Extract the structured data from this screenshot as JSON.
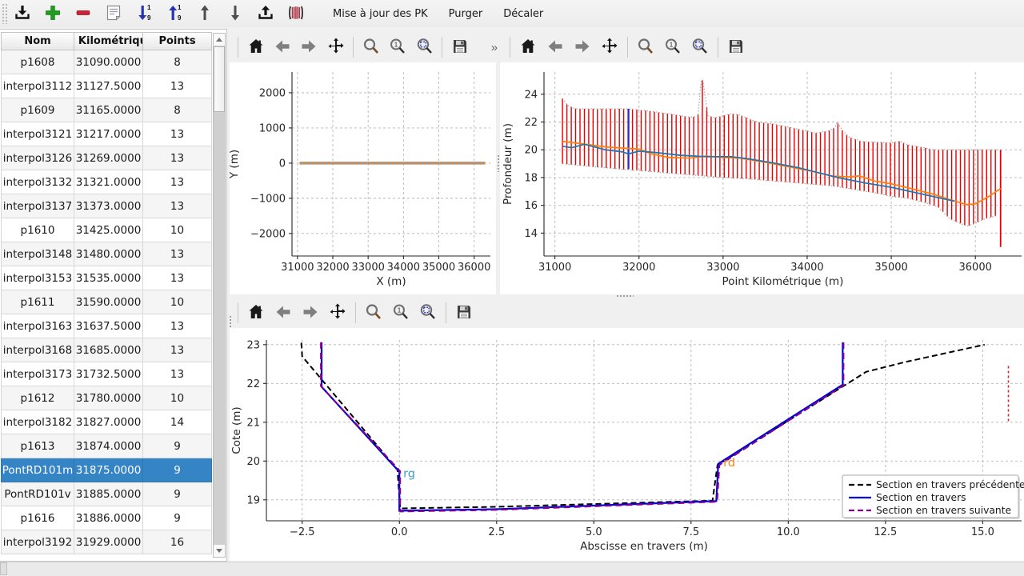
{
  "app_toolbar": {
    "icons": [
      {
        "name": "import-icon"
      },
      {
        "name": "add-icon"
      },
      {
        "name": "remove-icon"
      },
      {
        "name": "notes-icon"
      },
      {
        "name": "sort-descending-icon"
      },
      {
        "name": "sort-ascending-icon"
      },
      {
        "name": "move-up-icon"
      },
      {
        "name": "move-down-icon"
      },
      {
        "name": "export-icon"
      },
      {
        "name": "cross-sections-icon"
      }
    ],
    "text_buttons": [
      {
        "id": "maj-pk",
        "label": "Mise à jour des PK"
      },
      {
        "id": "purger",
        "label": "Purger"
      },
      {
        "id": "decaler",
        "label": "Décaler"
      }
    ]
  },
  "nav_toolbar": {
    "icons": [
      "home-icon",
      "back-icon",
      "forward-icon",
      "pan-icon",
      "zoom-icon",
      "zoom-one-icon",
      "zoom-fit-icon",
      "save-icon"
    ],
    "overflow_chevron": "»"
  },
  "table": {
    "columns": [
      "Nom",
      "t Kilométriqu",
      "Points"
    ],
    "selected_index": 17,
    "rows": [
      [
        "p1608",
        "31090.0000",
        "8"
      ],
      [
        "interpol3112",
        "31127.5000",
        "13"
      ],
      [
        "p1609",
        "31165.0000",
        "8"
      ],
      [
        "interpol3121",
        "31217.0000",
        "13"
      ],
      [
        "interpol3126",
        "31269.0000",
        "13"
      ],
      [
        "interpol3132",
        "31321.0000",
        "13"
      ],
      [
        "interpol3137",
        "31373.0000",
        "13"
      ],
      [
        "p1610",
        "31425.0000",
        "10"
      ],
      [
        "interpol3148",
        "31480.0000",
        "13"
      ],
      [
        "interpol3153",
        "31535.0000",
        "13"
      ],
      [
        "p1611",
        "31590.0000",
        "10"
      ],
      [
        "interpol3163",
        "31637.5000",
        "13"
      ],
      [
        "interpol3168",
        "31685.0000",
        "13"
      ],
      [
        "interpol3173",
        "31732.5000",
        "13"
      ],
      [
        "p1612",
        "31780.0000",
        "10"
      ],
      [
        "interpol3182",
        "31827.0000",
        "14"
      ],
      [
        "p1613",
        "31874.0000",
        "9"
      ],
      [
        "PontRD101m",
        "31875.0000",
        "9"
      ],
      [
        "PontRD101v",
        "31885.0000",
        "9"
      ],
      [
        "p1616",
        "31886.0000",
        "9"
      ],
      [
        "interpol3192",
        "31929.0000",
        "16"
      ]
    ]
  },
  "colors": {
    "selection": "#3584c6",
    "section_red": "#e60000",
    "orange": "#ff7f0e",
    "blue": "#1f77b4",
    "selected_section": "#2a2ad0",
    "current_blue": "#0000dd",
    "next_purple": "#8b008b",
    "grid": "#b5b5b5"
  },
  "chart_data": [
    {
      "id": "plan-view",
      "type": "line",
      "xlabel": "X (m)",
      "ylabel": "Y (m)",
      "xlim": [
        30845,
        36460
      ],
      "ylim": [
        -2640,
        2590
      ],
      "xticks": [
        {
          "v": 31000,
          "label": "31000"
        },
        {
          "v": 32000,
          "label": "32000"
        },
        {
          "v": 33000,
          "label": "33000"
        },
        {
          "v": 34000,
          "label": "34000"
        },
        {
          "v": 35000,
          "label": "35000"
        },
        {
          "v": 36000,
          "label": "36000"
        }
      ],
      "yticks": [
        {
          "v": -2000,
          "label": "−2000"
        },
        {
          "v": -1000,
          "label": "−1000"
        },
        {
          "v": 0,
          "label": "0"
        },
        {
          "v": 1000,
          "label": "1000"
        },
        {
          "v": 2000,
          "label": "2000"
        }
      ],
      "grid": true,
      "series": [
        {
          "name": "axe-gris",
          "color": "#9a9a9a",
          "width": 3.5,
          "dash": "",
          "points": [
            [
              31060,
              0
            ],
            [
              36310,
              0
            ]
          ]
        },
        {
          "name": "axe-orange",
          "color": "#ff7f0e",
          "width": 2,
          "dash": "2.5 2.5",
          "points": [
            [
              31060,
              0
            ],
            [
              36310,
              0
            ]
          ]
        }
      ]
    },
    {
      "id": "profil-long",
      "type": "line",
      "xlabel": "Point Kilométrique (m)",
      "ylabel": "Profondeur (m)",
      "xlim": [
        30870,
        36550
      ],
      "ylim": [
        12.35,
        25.6
      ],
      "xticks": [
        {
          "v": 31000,
          "label": "31000"
        },
        {
          "v": 32000,
          "label": "32000"
        },
        {
          "v": 33000,
          "label": "33000"
        },
        {
          "v": 34000,
          "label": "34000"
        },
        {
          "v": 35000,
          "label": "35000"
        },
        {
          "v": 36000,
          "label": "36000"
        }
      ],
      "yticks": [
        {
          "v": 14,
          "label": "14"
        },
        {
          "v": 16,
          "label": "16"
        },
        {
          "v": 18,
          "label": "18"
        },
        {
          "v": 20,
          "label": "20"
        },
        {
          "v": 22,
          "label": "22"
        },
        {
          "v": 24,
          "label": "24"
        }
      ],
      "grid": true,
      "envelope_top": [
        [
          31090,
          23.7
        ],
        [
          31150,
          23.2
        ],
        [
          31250,
          22.95
        ],
        [
          31450,
          22.95
        ],
        [
          31875,
          22.95
        ],
        [
          32100,
          22.8
        ],
        [
          32400,
          22.55
        ],
        [
          32600,
          22.35
        ],
        [
          32700,
          22.4
        ],
        [
          32740,
          25.0
        ],
        [
          32760,
          25.0
        ],
        [
          32820,
          22.45
        ],
        [
          32900,
          22.3
        ],
        [
          33100,
          22.6
        ],
        [
          33200,
          22.5
        ],
        [
          33400,
          22.0
        ],
        [
          33600,
          21.85
        ],
        [
          33800,
          21.6
        ],
        [
          34000,
          21.35
        ],
        [
          34100,
          21.2
        ],
        [
          34250,
          21.35
        ],
        [
          34330,
          21.6
        ],
        [
          34355,
          22.0
        ],
        [
          34420,
          21.4
        ],
        [
          34500,
          20.9
        ],
        [
          34650,
          20.6
        ],
        [
          34800,
          20.55
        ],
        [
          35000,
          20.5
        ],
        [
          35100,
          20.62
        ],
        [
          35200,
          20.35
        ],
        [
          35350,
          20.2
        ],
        [
          35500,
          20.0
        ],
        [
          36300,
          20.0
        ]
      ],
      "envelope_bottom": [
        [
          31090,
          19.0
        ],
        [
          31500,
          18.75
        ],
        [
          32000,
          18.5
        ],
        [
          32500,
          18.25
        ],
        [
          33000,
          18.0
        ],
        [
          33300,
          17.9
        ],
        [
          33700,
          17.7
        ],
        [
          34000,
          17.55
        ],
        [
          34300,
          17.4
        ],
        [
          34600,
          17.1
        ],
        [
          34800,
          16.9
        ],
        [
          35000,
          16.65
        ],
        [
          35200,
          16.5
        ],
        [
          35400,
          16.2
        ],
        [
          35550,
          15.9
        ],
        [
          35700,
          15.0
        ],
        [
          35900,
          14.5
        ],
        [
          36000,
          14.7
        ],
        [
          36100,
          15.0
        ],
        [
          36250,
          15.25
        ]
      ],
      "sections": {
        "start": 31090,
        "end": 36260,
        "step": 52
      },
      "last_section": {
        "x": 36300,
        "top": 20.0,
        "bottom": 13.0
      },
      "selected_section": {
        "x": 31875,
        "color": "#2a2ad0"
      },
      "series": [
        {
          "name": "fond-orange",
          "color": "#ff7f0e",
          "width": 1.8,
          "dash": "",
          "points": [
            [
              31090,
              20.6
            ],
            [
              31300,
              20.45
            ],
            [
              31600,
              20.2
            ],
            [
              31875,
              20.1
            ],
            [
              32000,
              20.05
            ],
            [
              32150,
              19.7
            ],
            [
              32350,
              19.45
            ],
            [
              32600,
              19.4
            ],
            [
              32800,
              19.55
            ],
            [
              33000,
              19.45
            ],
            [
              33200,
              19.4
            ],
            [
              33500,
              19.1
            ],
            [
              33800,
              18.75
            ],
            [
              34100,
              18.4
            ],
            [
              34300,
              18.1
            ],
            [
              34500,
              18.05
            ],
            [
              34620,
              18.12
            ],
            [
              34800,
              17.75
            ],
            [
              35000,
              17.55
            ],
            [
              35300,
              17.1
            ],
            [
              35500,
              16.8
            ],
            [
              35700,
              16.4
            ],
            [
              35900,
              16.05
            ],
            [
              36000,
              16.1
            ],
            [
              36150,
              16.6
            ],
            [
              36300,
              17.2
            ]
          ]
        },
        {
          "name": "fond-bleu",
          "color": "#1f77b4",
          "width": 1.8,
          "dash": "",
          "points": [
            [
              31090,
              20.25
            ],
            [
              31200,
              20.15
            ],
            [
              31350,
              20.4
            ],
            [
              31600,
              20.0
            ],
            [
              31800,
              19.85
            ],
            [
              31875,
              19.7
            ],
            [
              32000,
              19.9
            ],
            [
              32200,
              19.8
            ],
            [
              32500,
              19.6
            ],
            [
              32800,
              19.5
            ],
            [
              33100,
              19.5
            ],
            [
              33300,
              19.35
            ],
            [
              33600,
              19.05
            ],
            [
              33900,
              18.7
            ],
            [
              34200,
              18.25
            ],
            [
              34400,
              17.95
            ],
            [
              34700,
              17.6
            ],
            [
              35000,
              17.3
            ],
            [
              35300,
              16.9
            ],
            [
              35600,
              16.5
            ],
            [
              35750,
              16.3
            ]
          ]
        }
      ]
    },
    {
      "id": "section-travers",
      "type": "line",
      "xlabel": "Abscisse en travers (m)",
      "ylabel": "Cote (m)",
      "xlim": [
        -3.42,
        16.0
      ],
      "ylim": [
        18.46,
        23.12
      ],
      "xticks": [
        {
          "v": -2.5,
          "label": "−2.5"
        },
        {
          "v": 0,
          "label": "0.0"
        },
        {
          "v": 2.5,
          "label": "2.5"
        },
        {
          "v": 5,
          "label": "5.0"
        },
        {
          "v": 7.5,
          "label": "7.5"
        },
        {
          "v": 10,
          "label": "10.0"
        },
        {
          "v": 12.5,
          "label": "12.5"
        },
        {
          "v": 15,
          "label": "15.0"
        }
      ],
      "yticks": [
        {
          "v": 19,
          "label": "19"
        },
        {
          "v": 20,
          "label": "20"
        },
        {
          "v": 21,
          "label": "21"
        },
        {
          "v": 22,
          "label": "22"
        },
        {
          "v": 23,
          "label": "23"
        }
      ],
      "grid": true,
      "series": [
        {
          "name": "section-precedente",
          "color": "#000000",
          "width": 2,
          "dash": "7 4",
          "points": [
            [
              -2.52,
              23.05
            ],
            [
              -2.5,
              22.7
            ],
            [
              -0.05,
              19.78
            ],
            [
              0.02,
              18.78
            ],
            [
              2.5,
              18.82
            ],
            [
              8.05,
              18.98
            ],
            [
              8.18,
              19.9
            ],
            [
              11.45,
              21.95
            ],
            [
              12.0,
              22.3
            ],
            [
              13.0,
              22.55
            ],
            [
              15.05,
              23.0
            ]
          ]
        },
        {
          "name": "section-courante",
          "color": "#0000dd",
          "width": 2.2,
          "dash": "",
          "points": [
            [
              -2.0,
              23.06
            ],
            [
              -2.0,
              21.92
            ],
            [
              -1.97,
              21.88
            ],
            [
              0,
              19.72
            ],
            [
              0,
              18.72
            ],
            [
              2.5,
              18.76
            ],
            [
              8.15,
              18.97
            ],
            [
              8.2,
              19.93
            ],
            [
              11.4,
              21.97
            ],
            [
              11.4,
              23.06
            ]
          ]
        },
        {
          "name": "section-suivante",
          "color": "#8b008b",
          "width": 2,
          "dash": "8 5",
          "points": [
            [
              -2.02,
              23.06
            ],
            [
              -2.02,
              21.93
            ],
            [
              0.02,
              19.74
            ],
            [
              0.02,
              18.7
            ],
            [
              2.5,
              18.74
            ],
            [
              8.17,
              18.95
            ],
            [
              8.23,
              19.9
            ],
            [
              11.42,
              21.95
            ],
            [
              11.42,
              23.06
            ]
          ]
        },
        {
          "name": "section-bord-rouge",
          "color": "#dd2222",
          "width": 1.6,
          "dash": "3 3",
          "points": [
            [
              15.66,
              22.45
            ],
            [
              15.66,
              21.0
            ]
          ]
        }
      ],
      "annotations": [
        {
          "text": "rg",
          "color": "#3d9bd4",
          "x": 0.1,
          "y": 19.58
        },
        {
          "text": "rd",
          "color": "#ff7f0e",
          "x": 8.33,
          "y": 19.86
        }
      ],
      "legend": [
        {
          "label": "Section en travers précédente",
          "color": "#000000",
          "dash": "7 4"
        },
        {
          "label": "Section en travers",
          "color": "#0000dd",
          "dash": ""
        },
        {
          "label": "Section en travers suivante",
          "color": "#8b008b",
          "dash": "7 4"
        }
      ]
    }
  ]
}
